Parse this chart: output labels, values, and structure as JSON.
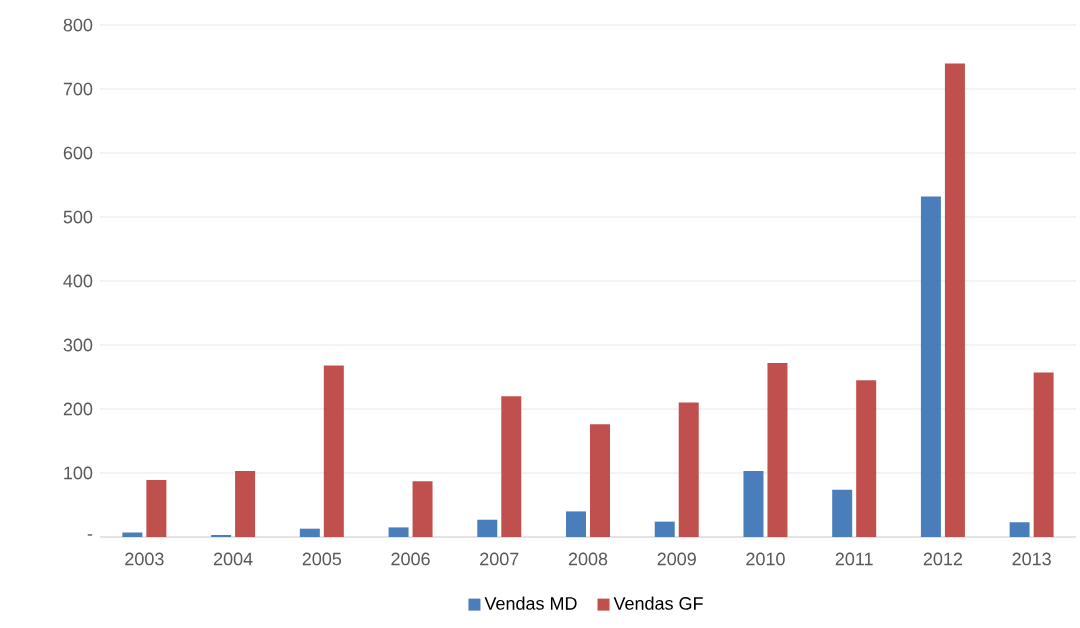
{
  "chart_data": {
    "type": "bar",
    "categories": [
      "2003",
      "2004",
      "2005",
      "2006",
      "2007",
      "2008",
      "2009",
      "2010",
      "2011",
      "2012",
      "2013"
    ],
    "series": [
      {
        "name": "Vendas MD",
        "color": "#4a7ebb",
        "values": [
          7,
          3,
          13,
          15,
          27,
          40,
          24,
          103,
          74,
          532,
          23
        ]
      },
      {
        "name": "Vendas GF",
        "color": "#c0504d",
        "values": [
          89,
          103,
          268,
          87,
          220,
          176,
          210,
          272,
          245,
          740,
          257
        ]
      }
    ],
    "ylim": [
      0,
      800
    ],
    "yticks": [
      {
        "value": 0,
        "label": "-"
      },
      100,
      200,
      300,
      400,
      500,
      600,
      700,
      800
    ],
    "grid": "y",
    "legend": "bottom"
  }
}
